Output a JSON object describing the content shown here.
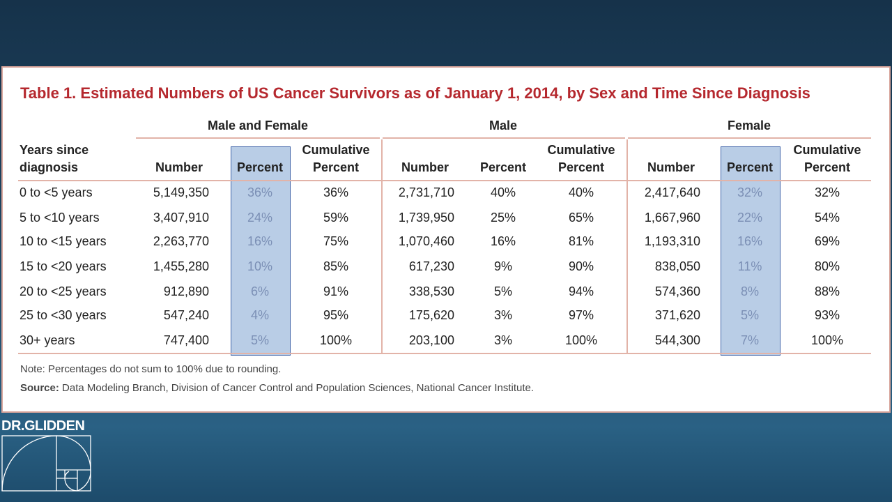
{
  "title": "Table 1. Estimated Numbers of US Cancer Survivors as of January 1, 2014, by Sex and Time Since Diagnosis",
  "table": {
    "groups": [
      "Male and Female",
      "Male",
      "Female"
    ],
    "columns": [
      "Years since diagnosis",
      "Number",
      "Percent",
      "Cumulative Percent",
      "Number",
      "Percent",
      "Cumulative Percent",
      "Number",
      "Percent",
      "Cumulative Percent"
    ],
    "rows": [
      [
        "0 to <5 years",
        "5,149,350",
        "36%",
        "36%",
        "2,731,710",
        "40%",
        "40%",
        "2,417,640",
        "32%",
        "32%"
      ],
      [
        "5 to <10 years",
        "3,407,910",
        "24%",
        "59%",
        "1,739,950",
        "25%",
        "65%",
        "1,667,960",
        "22%",
        "54%"
      ],
      [
        "10 to <15 years",
        "2,263,770",
        "16%",
        "75%",
        "1,070,460",
        "16%",
        "81%",
        "1,193,310",
        "16%",
        "69%"
      ],
      [
        "15 to <20 years",
        "1,455,280",
        "10%",
        "85%",
        "617,230",
        "9%",
        "90%",
        "838,050",
        "11%",
        "80%"
      ],
      [
        "20 to <25 years",
        "912,890",
        "6%",
        "91%",
        "338,530",
        "5%",
        "94%",
        "574,360",
        "8%",
        "88%"
      ],
      [
        "25 to <30 years",
        "547,240",
        "4%",
        "95%",
        "175,620",
        "3%",
        "97%",
        "371,620",
        "5%",
        "93%"
      ],
      [
        "30+ years",
        "747,400",
        "5%",
        "100%",
        "203,100",
        "3%",
        "100%",
        "544,300",
        "7%",
        "100%"
      ]
    ]
  },
  "note": "Note: Percentages do not sum to 100% due to rounding.",
  "source": {
    "label": "Source:",
    "text": "Data Modeling Branch, Division of Cancer Control and Population Sciences, National Cancer Institute."
  },
  "logo": "DR.GLIDDEN"
}
